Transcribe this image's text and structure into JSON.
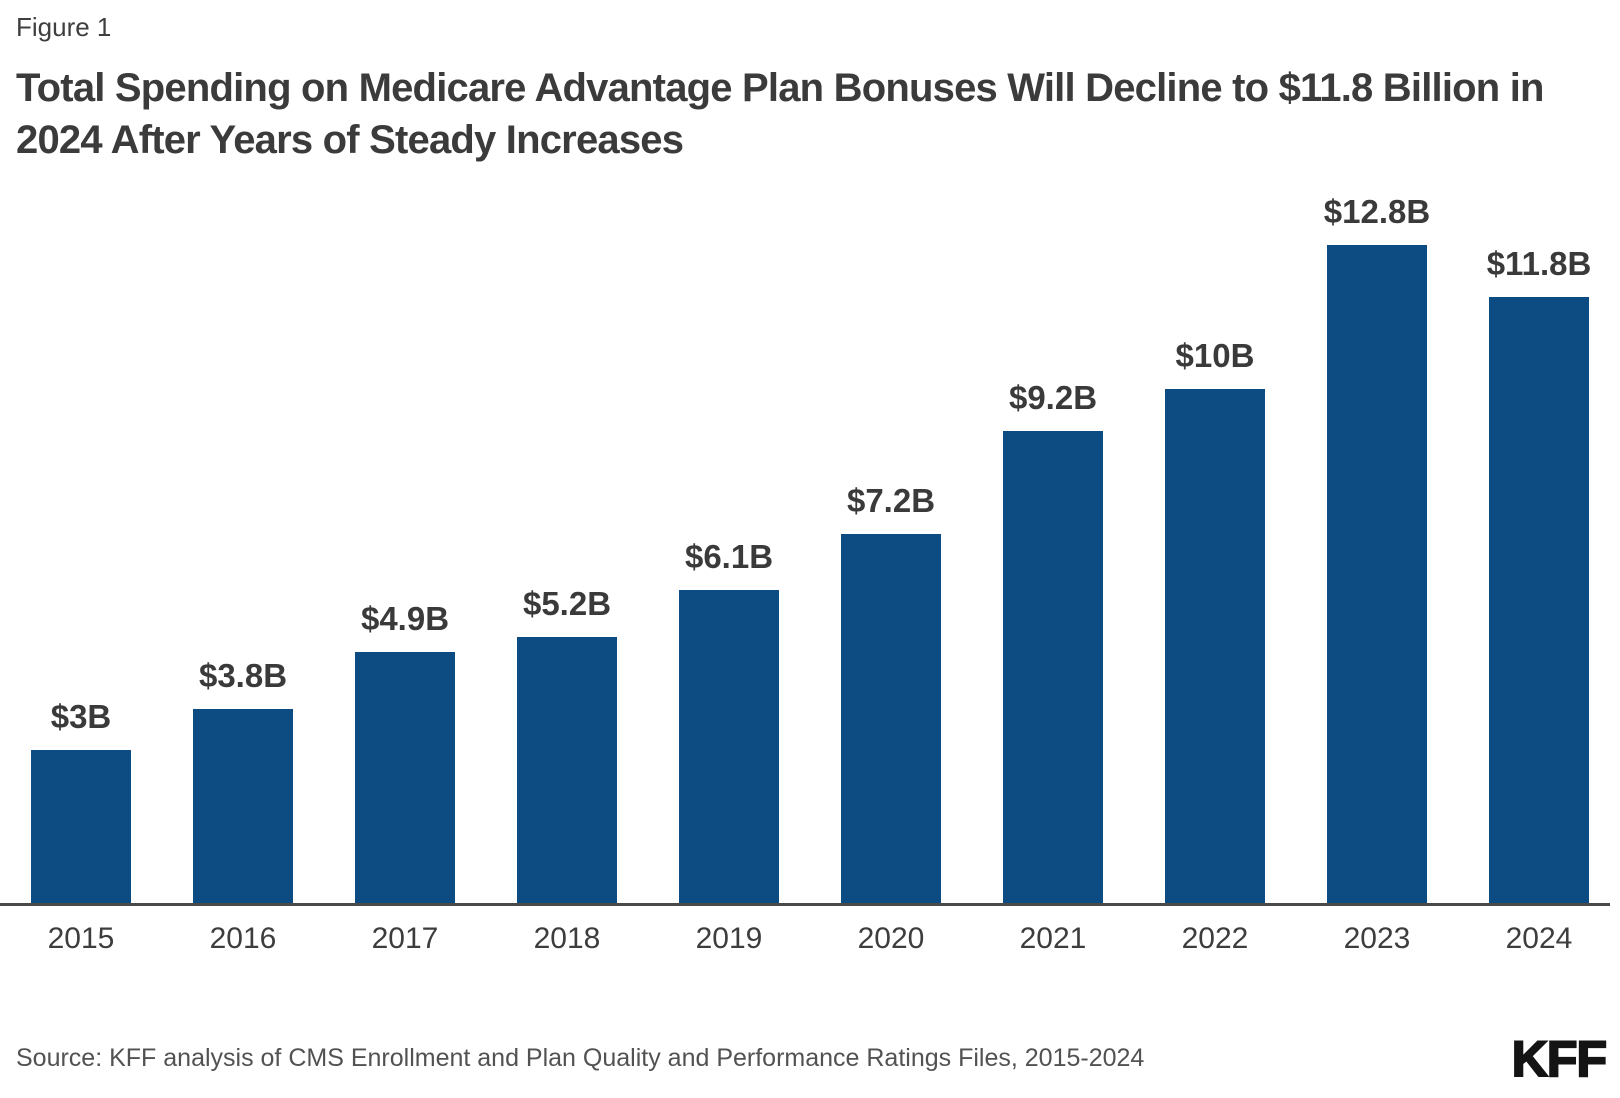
{
  "figure_label": "Figure 1",
  "title": "Total Spending on Medicare Advantage Plan Bonuses Will Decline to $11.8 Billion in 2024 After Years of Steady Increases",
  "source": "Source: KFF analysis of CMS Enrollment and Plan Quality and Performance Ratings Files, 2015-2024",
  "logo_text": "KFF",
  "colors": {
    "bar": "#0d4c83",
    "title_text": "#3b3b3b",
    "axis_line": "#4a4a4a",
    "value_label_text": "#3a3a3a",
    "source_text": "#525252",
    "logo_text": "#141414",
    "background": "#ffffff"
  },
  "chart_data": {
    "type": "bar",
    "title": "Total Spending on Medicare Advantage Plan Bonuses Will Decline to $11.8 Billion in 2024 After Years of Steady Increases",
    "categories": [
      "2015",
      "2016",
      "2017",
      "2018",
      "2019",
      "2020",
      "2021",
      "2022",
      "2023",
      "2024"
    ],
    "values": [
      3,
      3.8,
      4.9,
      5.2,
      6.1,
      7.2,
      9.2,
      10,
      12.8,
      11.8
    ],
    "value_labels": [
      "$3B",
      "$3.8B",
      "$4.9B",
      "$5.2B",
      "$6.1B",
      "$7.2B",
      "$9.2B",
      "$10B",
      "$12.8B",
      "$11.8B"
    ],
    "unit": "billions of dollars",
    "xlabel": "",
    "ylabel": "",
    "ylim": [
      0,
      13.5
    ],
    "y_axis_visible": false,
    "grid": false,
    "legend": "none",
    "bar_color": "#0d4c83"
  }
}
